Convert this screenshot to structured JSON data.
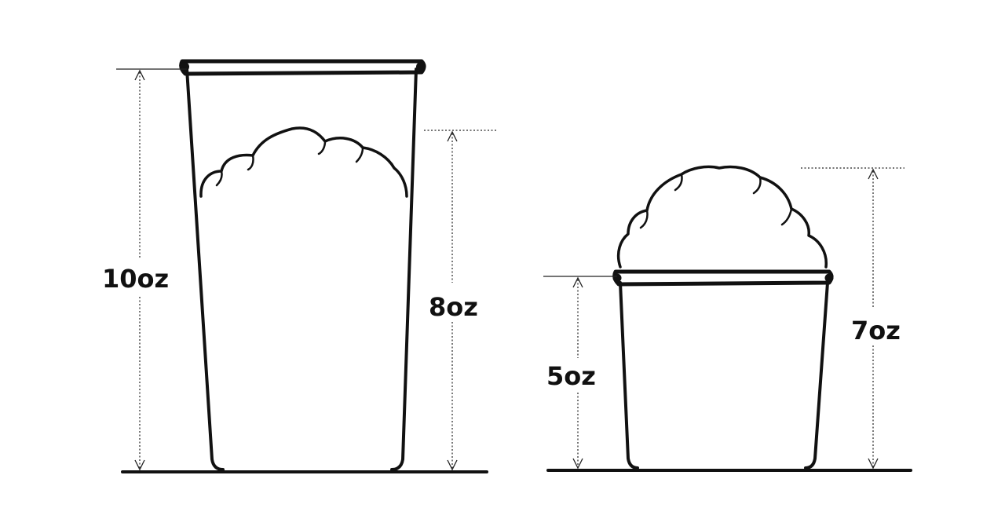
{
  "diagram": {
    "tall_cup": {
      "cup_label": "10oz",
      "fill_label": "8oz"
    },
    "short_cup": {
      "cup_label": "5oz",
      "fill_label": "7oz"
    },
    "colors": {
      "ink": "#111111",
      "background": "#ffffff"
    }
  }
}
